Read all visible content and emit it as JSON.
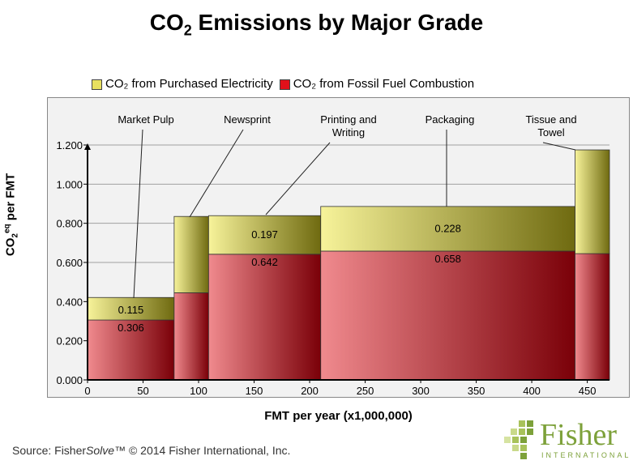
{
  "title": {
    "main": "CO",
    "sub": "2",
    "rest": " Emissions by Major Grade"
  },
  "legend": {
    "items": [
      {
        "label": "CO₂ from Purchased Electricity",
        "color": "#e8e060"
      },
      {
        "label": "CO₂ from Fossil Fuel Combustion",
        "color": "#e0101a"
      }
    ]
  },
  "y_axis_label": "CO2eq per FMT",
  "x_axis_label": "FMT per year (x1,000,000)",
  "source": {
    "prefix": "Source: Fisher",
    "italic": "Solve",
    "suffix": "™ © 2014 Fisher International, Inc."
  },
  "logo": {
    "name": "Fisher",
    "sub": "INTERNATIONAL"
  },
  "chart_data": {
    "type": "bar",
    "subtype": "variable-width stacked",
    "xlim": [
      0,
      470
    ],
    "ylim": [
      0,
      1.2
    ],
    "x_ticks": [
      "0",
      "50",
      "100",
      "150",
      "200",
      "250",
      "300",
      "350",
      "400",
      "450"
    ],
    "x_tick_values": [
      0,
      50,
      100,
      150,
      200,
      250,
      300,
      350,
      400,
      450
    ],
    "y_ticks": [
      "0.000",
      "0.200",
      "0.400",
      "0.600",
      "0.800",
      "1.000",
      "1.200"
    ],
    "y_tick_values": [
      0,
      0.2,
      0.4,
      0.6,
      0.8,
      1.0,
      1.2
    ],
    "grid": "horizontal",
    "series": [
      {
        "name": "CO₂ from Fossil Fuel Combustion",
        "color": "#e0101a"
      },
      {
        "name": "CO₂ from Purchased Electricity",
        "color": "#e8e060"
      }
    ],
    "grades": [
      {
        "name": "Market Pulp",
        "x_start": 0,
        "x_end": 78,
        "fossil": 0.306,
        "electric": 0.115,
        "fossil_label": "0.306",
        "electric_label": "0.115"
      },
      {
        "name": "Newsprint",
        "x_start": 78,
        "x_end": 109,
        "fossil": 0.445,
        "electric": 0.39,
        "fossil_label": "",
        "electric_label": ""
      },
      {
        "name": "Printing and Writing",
        "x_start": 109,
        "x_end": 210,
        "fossil": 0.642,
        "electric": 0.197,
        "fossil_label": "0.642",
        "electric_label": "0.197"
      },
      {
        "name": "Packaging",
        "x_start": 210,
        "x_end": 439,
        "fossil": 0.658,
        "electric": 0.228,
        "fossil_label": "0.658",
        "electric_label": "0.228"
      },
      {
        "name": "Tissue and Towel",
        "x_start": 439,
        "x_end": 470,
        "fossil": 0.645,
        "electric": 0.53,
        "fossil_label": "",
        "electric_label": ""
      }
    ],
    "annotations": [
      {
        "text": [
          "Market Pulp"
        ],
        "grade": 0
      },
      {
        "text": [
          "Newsprint"
        ],
        "grade": 1
      },
      {
        "text": [
          "Printing and",
          "Writing"
        ],
        "grade": 2
      },
      {
        "text": [
          "Packaging"
        ],
        "grade": 3
      },
      {
        "text": [
          "Tissue and",
          "Towel"
        ],
        "grade": 4
      }
    ]
  }
}
